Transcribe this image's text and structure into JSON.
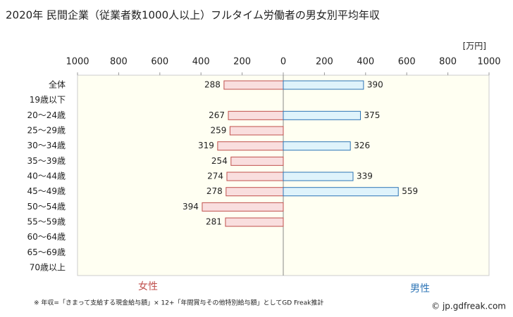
{
  "chart_data": {
    "type": "bar",
    "title": "2020年 民間企業（従業者数1000人以上）フルタイム労働者の男女別平均年収",
    "unit_label": "[万円]",
    "categories": [
      "全体",
      "19歳以下",
      "20〜24歳",
      "25〜29歳",
      "30〜34歳",
      "35〜39歳",
      "40〜44歳",
      "45〜49歳",
      "50〜54歳",
      "55〜59歳",
      "60〜64歳",
      "65〜69歳",
      "70歳以上"
    ],
    "series": [
      {
        "name": "女性",
        "color": "#c0504d",
        "fill": "#f9dede",
        "values": [
          288,
          null,
          267,
          259,
          319,
          254,
          274,
          278,
          394,
          281,
          null,
          null,
          null
        ]
      },
      {
        "name": "男性",
        "color": "#2e75b6",
        "fill": "#dff3fb",
        "values": [
          390,
          null,
          375,
          null,
          326,
          null,
          339,
          559,
          null,
          null,
          null,
          null,
          null
        ]
      }
    ],
    "xlim": [
      -1000,
      1000
    ],
    "xticks": [
      {
        "value": -1000,
        "label": "1000"
      },
      {
        "value": -800,
        "label": "800"
      },
      {
        "value": -600,
        "label": "600"
      },
      {
        "value": -400,
        "label": "400"
      },
      {
        "value": -200,
        "label": "200"
      },
      0,
      200,
      400,
      600,
      800,
      1000
    ],
    "footnote": "※ 年収=「きまって支給する現金給与額」× 12+「年間賞与その他特別給与額」としてGD Freak推計",
    "source": "© jp.gdfreak.com"
  }
}
